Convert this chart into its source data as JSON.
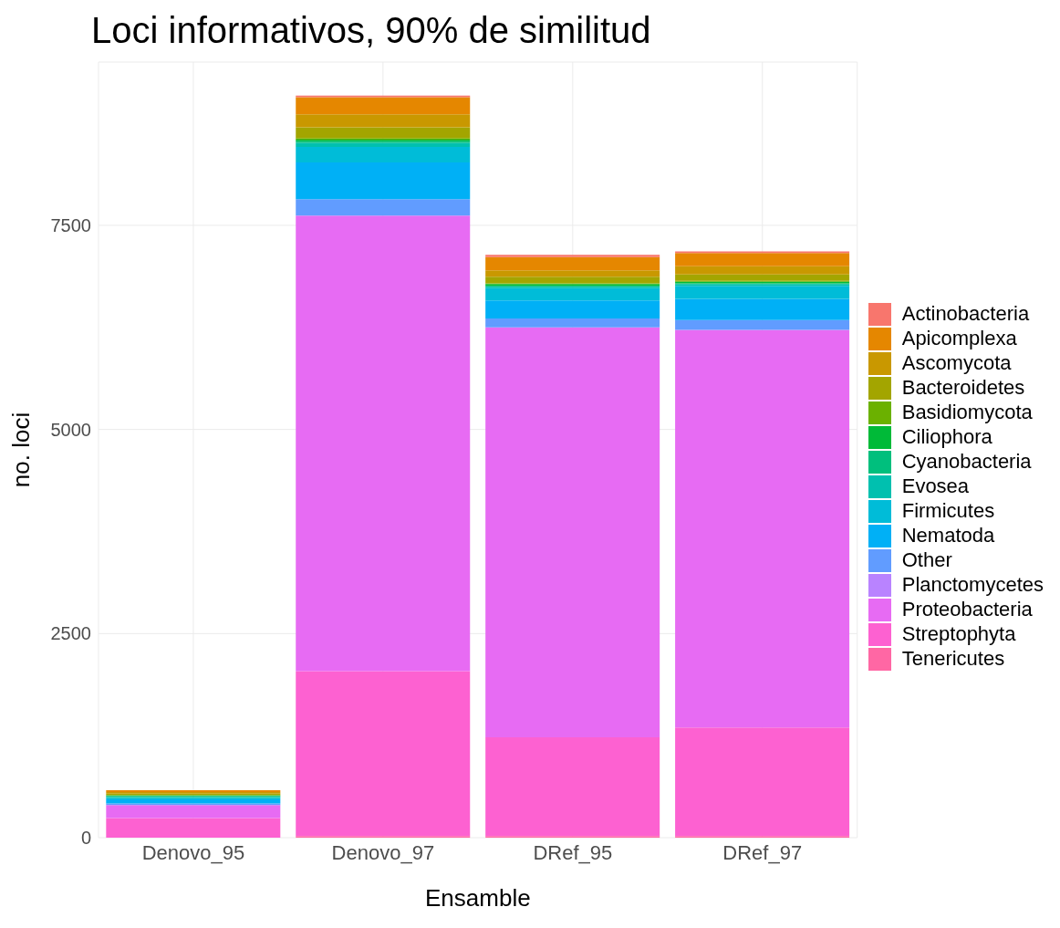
{
  "chart_data": {
    "type": "bar",
    "title": "Loci informativos,  90% de similitud",
    "xlabel": "Ensamble",
    "ylabel": "no. loci",
    "categories": [
      "Denovo_95",
      "Denovo_97",
      "DRef_95",
      "DRef_97"
    ],
    "stacked": true,
    "ylim": [
      0,
      9500
    ],
    "yticks": [
      0,
      2500,
      5000,
      7500
    ],
    "grid": true,
    "legend": "right",
    "series": [
      {
        "name": "Tenericutes",
        "color": "#ff67a4",
        "values": [
          null,
          20,
          20,
          20
        ]
      },
      {
        "name": "Streptophyta",
        "color": "#fd61d1",
        "values": [
          240,
          2020,
          1210,
          1330
        ]
      },
      {
        "name": "Proteobacteria",
        "color": "#e76bf3",
        "values": [
          160,
          5580,
          5020,
          4870
        ]
      },
      {
        "name": "Planctomycetes",
        "color": "#b983ff",
        "values": [
          0,
          0,
          0,
          0
        ]
      },
      {
        "name": "Other",
        "color": "#619cff",
        "values": [
          20,
          200,
          110,
          120
        ]
      },
      {
        "name": "Nematoda",
        "color": "#00b0f6",
        "values": [
          50,
          450,
          220,
          260
        ]
      },
      {
        "name": "Firmicutes",
        "color": "#00bcd8",
        "values": [
          20,
          190,
          150,
          160
        ]
      },
      {
        "name": "Evosea",
        "color": "#00c0af",
        "values": [
          10,
          50,
          20,
          20
        ]
      },
      {
        "name": "Cyanobacteria",
        "color": "#00bf7d",
        "values": [
          10,
          20,
          10,
          10
        ]
      },
      {
        "name": "Ciliophora",
        "color": "#00ba38",
        "values": [
          10,
          20,
          20,
          20
        ]
      },
      {
        "name": "Basidiomycota",
        "color": "#6bb100",
        "values": [
          0,
          20,
          10,
          10
        ]
      },
      {
        "name": "Bacteroidetes",
        "color": "#a3a500",
        "values": [
          20,
          130,
          80,
          80
        ]
      },
      {
        "name": "Ascomycota",
        "color": "#c99800",
        "values": [
          20,
          160,
          80,
          100
        ]
      },
      {
        "name": "Apicomplexa",
        "color": "#e58700",
        "values": [
          20,
          210,
          160,
          160
        ]
      },
      {
        "name": "Actinobacteria",
        "color": "#f8766d",
        "values": [
          null,
          20,
          30,
          20
        ]
      }
    ]
  }
}
